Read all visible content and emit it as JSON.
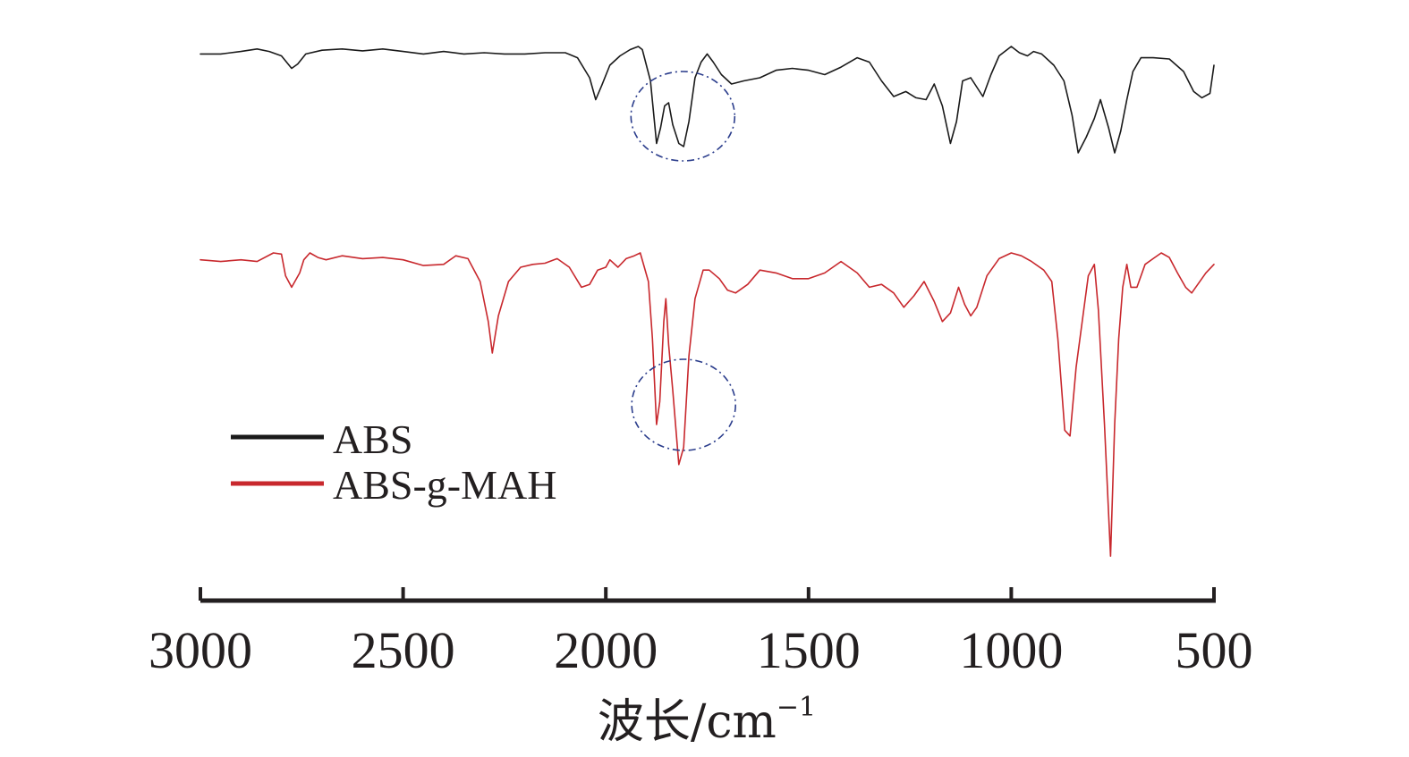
{
  "chart_data": {
    "type": "line",
    "title": "",
    "xlabel": "波长/cm",
    "xlabel_sup": "−1",
    "ylabel": "",
    "xlim": [
      3000,
      500
    ],
    "x_reversed": true,
    "xticks": [
      3000,
      2500,
      2000,
      1500,
      1000,
      500
    ],
    "grid": false,
    "y_axis_visible": false,
    "legend_position": "bottom-left",
    "series": [
      {
        "name": "ABS",
        "color": "#1a1a1a",
        "points": [
          [
            3000,
            0.12
          ],
          [
            2950,
            0.12
          ],
          [
            2900,
            0.08
          ],
          [
            2860,
            0.04
          ],
          [
            2830,
            0.08
          ],
          [
            2800,
            0.15
          ],
          [
            2775,
            0.35
          ],
          [
            2760,
            0.28
          ],
          [
            2740,
            0.12
          ],
          [
            2700,
            0.06
          ],
          [
            2650,
            0.04
          ],
          [
            2600,
            0.07
          ],
          [
            2550,
            0.04
          ],
          [
            2500,
            0.08
          ],
          [
            2450,
            0.12
          ],
          [
            2400,
            0.08
          ],
          [
            2350,
            0.12
          ],
          [
            2300,
            0.1
          ],
          [
            2250,
            0.12
          ],
          [
            2200,
            0.12
          ],
          [
            2150,
            0.1
          ],
          [
            2100,
            0.1
          ],
          [
            2070,
            0.18
          ],
          [
            2040,
            0.5
          ],
          [
            2025,
            0.85
          ],
          [
            2010,
            0.62
          ],
          [
            1990,
            0.3
          ],
          [
            1965,
            0.15
          ],
          [
            1940,
            0.05
          ],
          [
            1920,
            0.0
          ],
          [
            1910,
            0.05
          ],
          [
            1890,
            0.55
          ],
          [
            1875,
            1.55
          ],
          [
            1865,
            1.3
          ],
          [
            1855,
            0.95
          ],
          [
            1845,
            0.9
          ],
          [
            1835,
            1.25
          ],
          [
            1820,
            1.55
          ],
          [
            1808,
            1.6
          ],
          [
            1795,
            1.2
          ],
          [
            1780,
            0.5
          ],
          [
            1765,
            0.25
          ],
          [
            1750,
            0.12
          ],
          [
            1735,
            0.25
          ],
          [
            1715,
            0.45
          ],
          [
            1690,
            0.6
          ],
          [
            1660,
            0.55
          ],
          [
            1620,
            0.5
          ],
          [
            1580,
            0.38
          ],
          [
            1540,
            0.35
          ],
          [
            1500,
            0.38
          ],
          [
            1460,
            0.45
          ],
          [
            1420,
            0.33
          ],
          [
            1380,
            0.18
          ],
          [
            1350,
            0.25
          ],
          [
            1320,
            0.55
          ],
          [
            1290,
            0.8
          ],
          [
            1260,
            0.72
          ],
          [
            1235,
            0.82
          ],
          [
            1210,
            0.85
          ],
          [
            1190,
            0.6
          ],
          [
            1170,
            0.95
          ],
          [
            1150,
            1.55
          ],
          [
            1135,
            1.2
          ],
          [
            1120,
            0.55
          ],
          [
            1100,
            0.5
          ],
          [
            1085,
            0.65
          ],
          [
            1070,
            0.8
          ],
          [
            1050,
            0.45
          ],
          [
            1030,
            0.15
          ],
          [
            1000,
            0.0
          ],
          [
            980,
            0.1
          ],
          [
            960,
            0.15
          ],
          [
            945,
            0.08
          ],
          [
            925,
            0.12
          ],
          [
            895,
            0.3
          ],
          [
            870,
            0.55
          ],
          [
            850,
            1.1
          ],
          [
            835,
            1.7
          ],
          [
            815,
            1.45
          ],
          [
            795,
            1.15
          ],
          [
            780,
            0.85
          ],
          [
            760,
            1.3
          ],
          [
            745,
            1.7
          ],
          [
            730,
            1.35
          ],
          [
            715,
            0.85
          ],
          [
            700,
            0.4
          ],
          [
            680,
            0.18
          ],
          [
            650,
            0.18
          ],
          [
            610,
            0.2
          ],
          [
            575,
            0.4
          ],
          [
            550,
            0.72
          ],
          [
            530,
            0.82
          ],
          [
            510,
            0.75
          ],
          [
            500,
            0.3
          ]
        ]
      },
      {
        "name": "ABS-g-MAH",
        "color": "#c8282d",
        "points": [
          [
            3000,
            0.12
          ],
          [
            2950,
            0.15
          ],
          [
            2900,
            0.12
          ],
          [
            2860,
            0.15
          ],
          [
            2820,
            0.0
          ],
          [
            2800,
            0.02
          ],
          [
            2790,
            0.4
          ],
          [
            2775,
            0.6
          ],
          [
            2755,
            0.35
          ],
          [
            2745,
            0.12
          ],
          [
            2730,
            0.0
          ],
          [
            2710,
            0.08
          ],
          [
            2690,
            0.12
          ],
          [
            2650,
            0.05
          ],
          [
            2600,
            0.1
          ],
          [
            2550,
            0.08
          ],
          [
            2500,
            0.12
          ],
          [
            2450,
            0.22
          ],
          [
            2400,
            0.2
          ],
          [
            2370,
            0.05
          ],
          [
            2340,
            0.1
          ],
          [
            2310,
            0.5
          ],
          [
            2290,
            1.2
          ],
          [
            2280,
            1.75
          ],
          [
            2265,
            1.1
          ],
          [
            2240,
            0.5
          ],
          [
            2210,
            0.25
          ],
          [
            2180,
            0.2
          ],
          [
            2150,
            0.18
          ],
          [
            2120,
            0.1
          ],
          [
            2090,
            0.25
          ],
          [
            2060,
            0.6
          ],
          [
            2040,
            0.55
          ],
          [
            2020,
            0.3
          ],
          [
            2000,
            0.25
          ],
          [
            1990,
            0.12
          ],
          [
            1970,
            0.25
          ],
          [
            1950,
            0.1
          ],
          [
            1930,
            0.05
          ],
          [
            1915,
            0.0
          ],
          [
            1895,
            0.5
          ],
          [
            1885,
            1.5
          ],
          [
            1875,
            3.0
          ],
          [
            1867,
            2.6
          ],
          [
            1857,
            1.2
          ],
          [
            1852,
            0.8
          ],
          [
            1845,
            1.6
          ],
          [
            1835,
            2.4
          ],
          [
            1820,
            3.7
          ],
          [
            1808,
            3.4
          ],
          [
            1795,
            1.8
          ],
          [
            1780,
            0.8
          ],
          [
            1760,
            0.3
          ],
          [
            1745,
            0.3
          ],
          [
            1720,
            0.45
          ],
          [
            1700,
            0.65
          ],
          [
            1680,
            0.7
          ],
          [
            1650,
            0.55
          ],
          [
            1620,
            0.3
          ],
          [
            1580,
            0.35
          ],
          [
            1540,
            0.45
          ],
          [
            1500,
            0.45
          ],
          [
            1460,
            0.35
          ],
          [
            1420,
            0.15
          ],
          [
            1380,
            0.35
          ],
          [
            1350,
            0.6
          ],
          [
            1320,
            0.55
          ],
          [
            1290,
            0.7
          ],
          [
            1265,
            0.95
          ],
          [
            1240,
            0.75
          ],
          [
            1215,
            0.5
          ],
          [
            1190,
            0.85
          ],
          [
            1170,
            1.2
          ],
          [
            1150,
            1.05
          ],
          [
            1130,
            0.6
          ],
          [
            1115,
            0.9
          ],
          [
            1100,
            1.1
          ],
          [
            1085,
            0.95
          ],
          [
            1060,
            0.4
          ],
          [
            1030,
            0.1
          ],
          [
            1000,
            0.0
          ],
          [
            975,
            0.05
          ],
          [
            950,
            0.15
          ],
          [
            920,
            0.3
          ],
          [
            900,
            0.5
          ],
          [
            885,
            1.5
          ],
          [
            868,
            3.1
          ],
          [
            855,
            3.2
          ],
          [
            840,
            2.0
          ],
          [
            825,
            1.2
          ],
          [
            810,
            0.4
          ],
          [
            795,
            0.2
          ],
          [
            785,
            1.0
          ],
          [
            770,
            3.0
          ],
          [
            755,
            5.3
          ],
          [
            745,
            3.0
          ],
          [
            735,
            1.5
          ],
          [
            725,
            0.6
          ],
          [
            715,
            0.2
          ],
          [
            705,
            0.6
          ],
          [
            690,
            0.6
          ],
          [
            670,
            0.2
          ],
          [
            650,
            0.1
          ],
          [
            630,
            0.0
          ],
          [
            610,
            0.08
          ],
          [
            590,
            0.35
          ],
          [
            570,
            0.6
          ],
          [
            555,
            0.7
          ],
          [
            540,
            0.55
          ],
          [
            520,
            0.35
          ],
          [
            500,
            0.2
          ]
        ]
      }
    ],
    "annotations": [
      {
        "type": "dash-dot-ellipse",
        "cx": 1810,
        "series": "ABS",
        "color": "#2b3d8c"
      },
      {
        "type": "dash-dot-ellipse",
        "cx": 1808,
        "series": "ABS-g-MAH",
        "color": "#2b3d8c"
      }
    ]
  }
}
